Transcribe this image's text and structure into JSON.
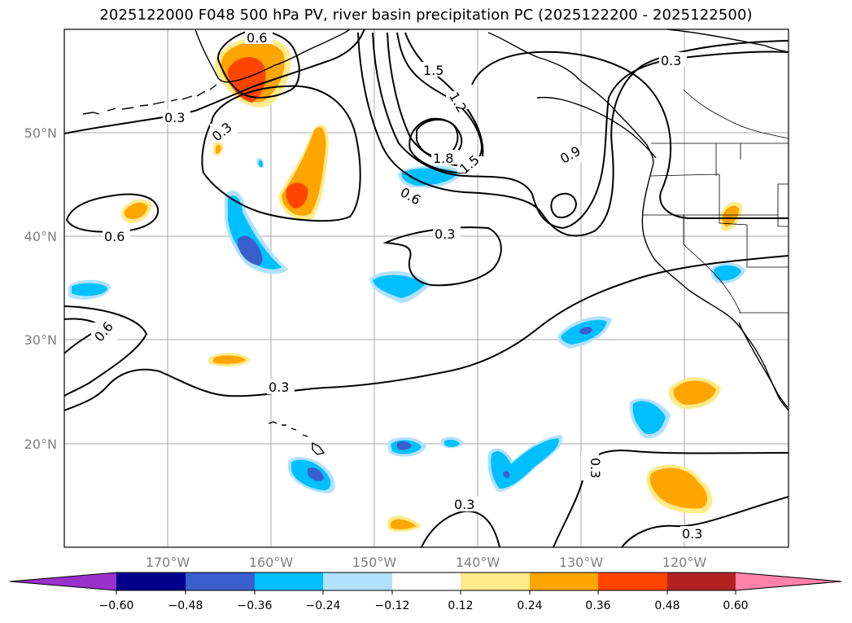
{
  "title": "2025122000 F048 500 hPa PV, river basin precipitation PC (2025122200 - 2025122500)",
  "lat_labels": [
    "50°N",
    "40°N",
    "30°N",
    "20°N"
  ],
  "lon_labels": [
    "170°W",
    "160°W",
    "150°W",
    "140°W",
    "130°W",
    "120°W"
  ],
  "contour_labels": [
    "0.6",
    "1.5",
    "1.2",
    "0.3",
    "0.3",
    "0.3",
    "1.8",
    "1.5",
    "0.6",
    "0.9",
    "0.6",
    "0.3",
    "0.6",
    "0.3",
    "0.3",
    "0.3",
    "0.3"
  ],
  "colorbar": {
    "ticks": [
      "−0.60",
      "−0.48",
      "−0.36",
      "−0.24",
      "−0.12",
      "0.12",
      "0.24",
      "0.36",
      "0.48",
      "0.60"
    ],
    "colors": [
      "#9932cc",
      "#00008b",
      "#3a5fcd",
      "#00bfff",
      "#b0e2ff",
      "#ffffff",
      "#ffeb8a",
      "#ffa500",
      "#ff4500",
      "#b22222",
      "#ff82ab"
    ]
  },
  "fill_colors": {
    "neg_light": "#b0e2ff",
    "neg_mid": "#00bfff",
    "neg_strong": "#3a5fcd",
    "pos_light": "#ffeb8a",
    "pos_mid": "#ffa500",
    "pos_strong": "#ff4500"
  }
}
